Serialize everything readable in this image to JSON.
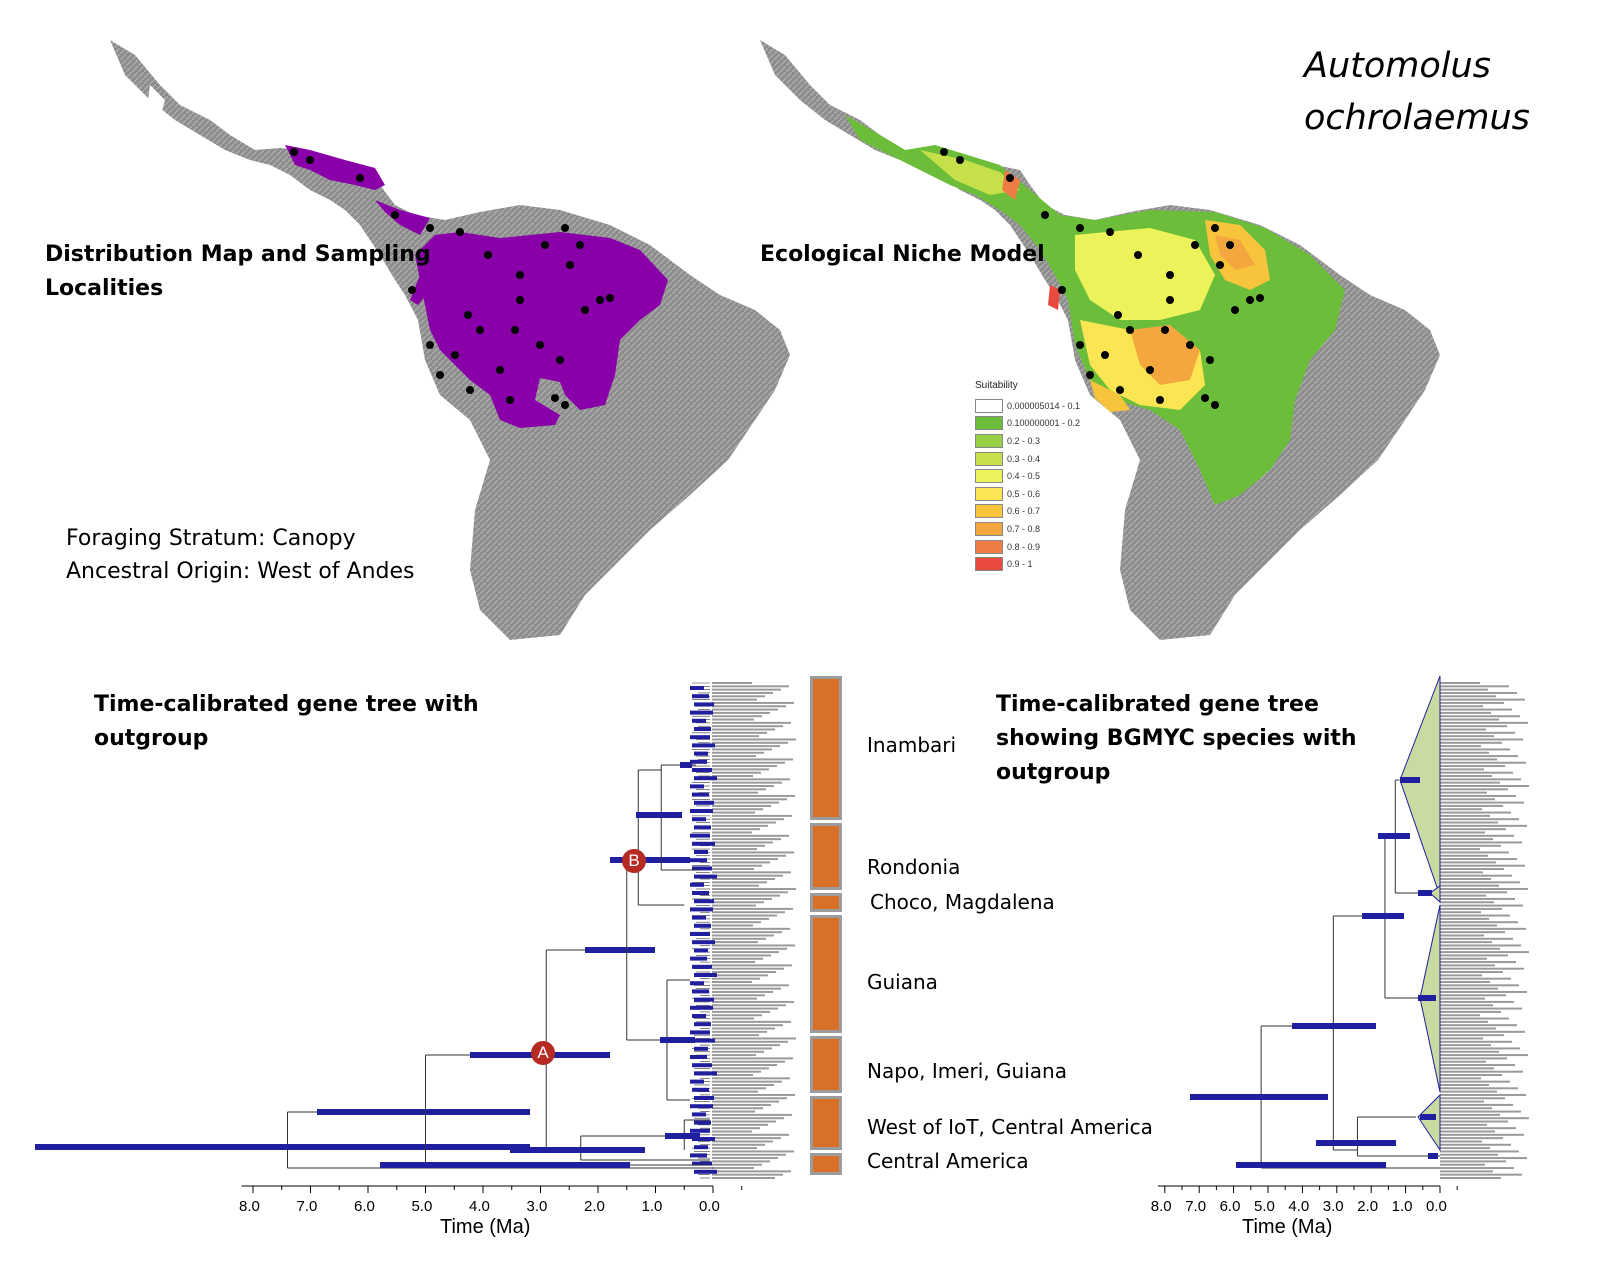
{
  "species_name": "Automolus ochrolaemus",
  "species_line1": "Automolus",
  "species_line2": "ochrolaemus",
  "panels": {
    "distribution": {
      "title_line1": "Distribution Map and Sampling",
      "title_line2": "Localities",
      "range_color": "#8a00a8",
      "point_color": "#000000"
    },
    "niche": {
      "title": "Ecological Niche Model",
      "legend_title": "Suitability",
      "legend": [
        {
          "label": "0.000005014 - 0.1",
          "color": "#ffffff"
        },
        {
          "label": "0.100000001 - 0.2",
          "color": "#6cbe3a"
        },
        {
          "label": "0.2 - 0.3",
          "color": "#99cf45"
        },
        {
          "label": "0.3 - 0.4",
          "color": "#c6e04a"
        },
        {
          "label": "0.4 - 0.5",
          "color": "#ecf25a"
        },
        {
          "label": "0.5 - 0.6",
          "color": "#fbe552"
        },
        {
          "label": "0.6 - 0.7",
          "color": "#f8c43c"
        },
        {
          "label": "0.7 - 0.8",
          "color": "#f4a73f"
        },
        {
          "label": "0.8 - 0.9",
          "color": "#ef7c45"
        },
        {
          "label": "0.9 - 1",
          "color": "#e84a3f"
        }
      ]
    },
    "traits": {
      "line1": "Foraging Stratum: Canopy",
      "line2": "Ancestral Origin: West of Andes"
    },
    "tree_left": {
      "title_line1": "Time-calibrated gene tree with",
      "title_line2": "outgroup",
      "clades": [
        "Inambari",
        "Rondonia",
        "Choco, Magdalena",
        "Guiana",
        "Napo, Imeri, Guiana",
        "West of IoT, Central America",
        "Central America"
      ],
      "node_labels": [
        "A",
        "B"
      ],
      "node_color": "#b52a22",
      "bar_color": "#1f1fa0",
      "clade_bar_color": "#d9702a",
      "ticks": [
        "8.0",
        "7.0",
        "6.0",
        "5.0",
        "4.0",
        "3.0",
        "2.0",
        "1.0",
        "0.0"
      ],
      "axis_title": "Time (Ma)"
    },
    "tree_right": {
      "title_line1": "Time-calibrated gene tree",
      "title_line2": "showing BGMYC species with",
      "title_line3": "outgroup",
      "wedge_color": "#c9dba0",
      "ticks": [
        "8.0",
        "7.0",
        "6.0",
        "5.0",
        "4.0",
        "3.0",
        "2.0",
        "1.0",
        "0.0"
      ],
      "axis_title": "Time (Ma)"
    }
  }
}
